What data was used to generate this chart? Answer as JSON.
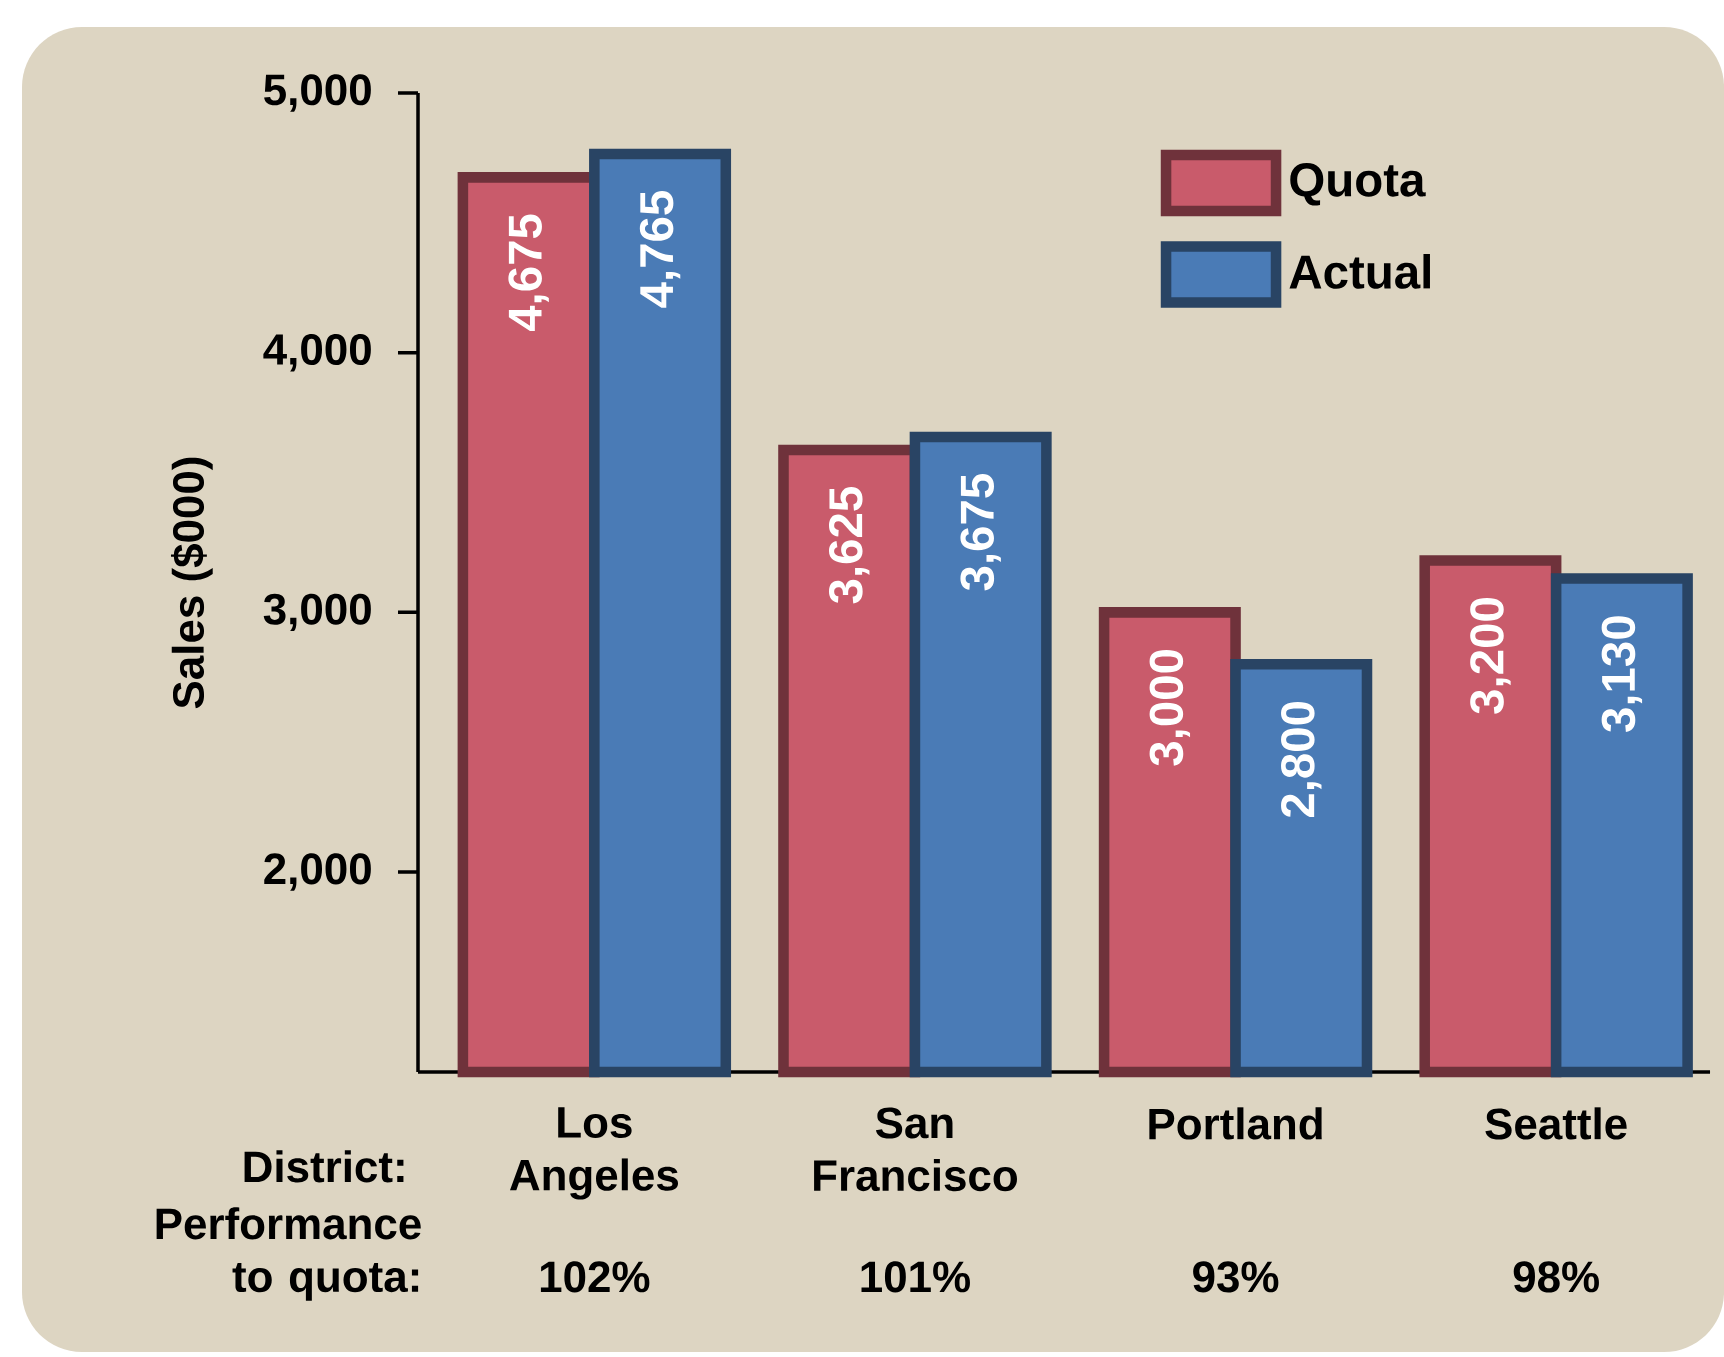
{
  "chart_data": {
    "type": "bar",
    "ylabel": "Sales ($000)",
    "categories": [
      "Los Angeles",
      "San Francisco",
      "Portland",
      "Seattle"
    ],
    "series": [
      {
        "name": "Quota",
        "color": "#c95b6b",
        "values": [
          4675,
          3625,
          3000,
          3200
        ],
        "value_labels": [
          "4,675",
          "3,625",
          "3,000",
          "3,200"
        ]
      },
      {
        "name": "Actual",
        "color": "#4a7bb6",
        "values": [
          4765,
          3675,
          2800,
          3130
        ],
        "value_labels": [
          "4,765",
          "3,675",
          "2,800",
          "3,130"
        ]
      }
    ],
    "ylim": [
      1230,
      5000
    ],
    "yticks": [
      {
        "value": 2000,
        "label": "2,000"
      },
      {
        "value": 3000,
        "label": "3,000"
      },
      {
        "value": 4000,
        "label": "4,000"
      },
      {
        "value": 5000,
        "label": "5,000"
      }
    ],
    "legend": "top right",
    "annotations": [
      "District:",
      "Performance to quota:",
      "102%",
      "101%",
      "93%",
      "98%"
    ]
  }
}
